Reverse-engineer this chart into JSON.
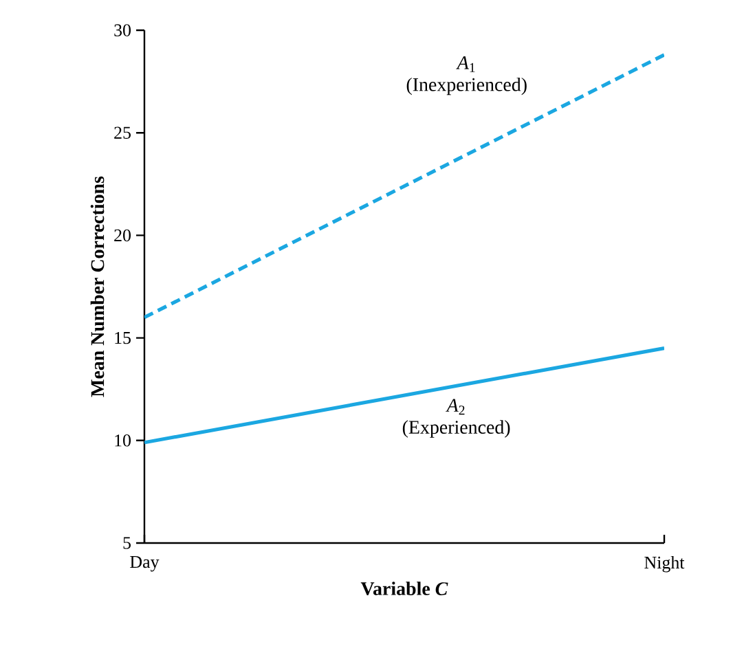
{
  "chart_data": {
    "type": "line",
    "xlabel": "Variable *C*",
    "ylabel": "Mean Number Corrections",
    "categories": [
      "Day",
      "Night"
    ],
    "ylim": [
      5,
      30
    ],
    "yticks": [
      5,
      10,
      15,
      20,
      25,
      30
    ],
    "grid": false,
    "legend": false,
    "marker": "none",
    "series": [
      {
        "name": "*A*$_{1}$ (Inexperienced)",
        "color": "#1ba7e1",
        "line_style": "dashed",
        "values": [
          16,
          28.8
        ]
      },
      {
        "name": "*A*$_{2}$ (Experienced)",
        "color": "#1ba7e1",
        "line_style": "solid",
        "values": [
          9.9,
          14.5
        ]
      }
    ]
  }
}
